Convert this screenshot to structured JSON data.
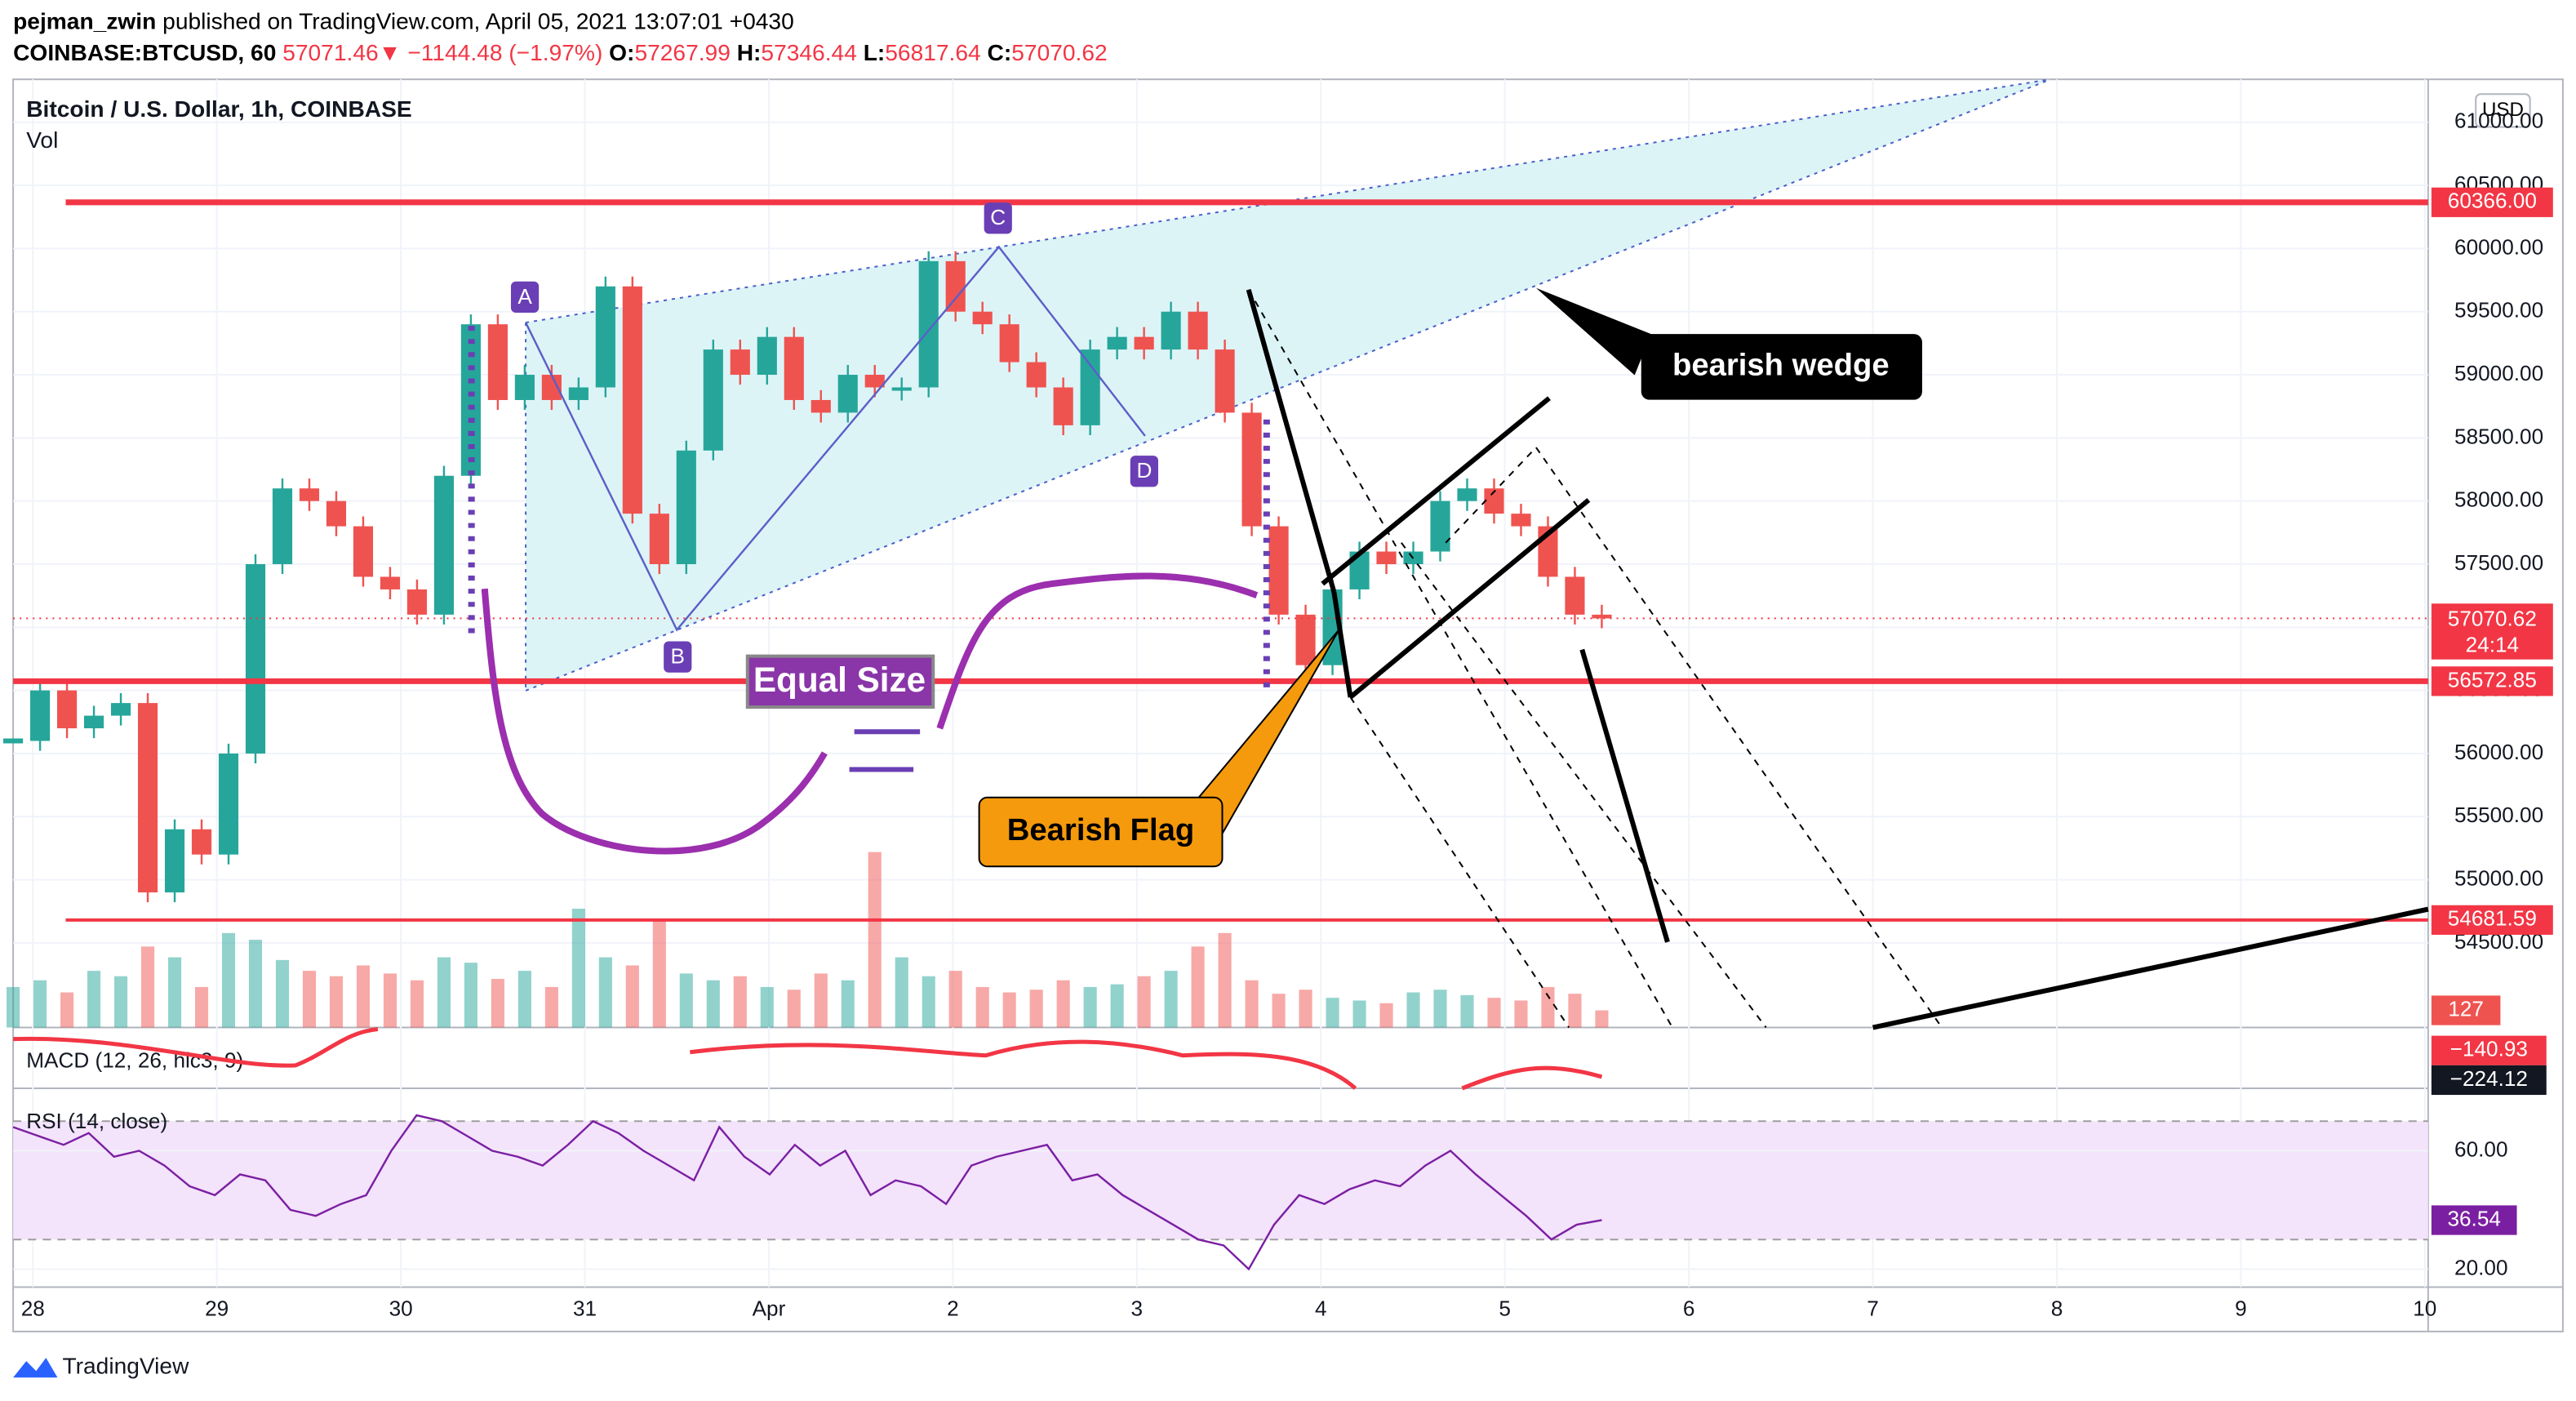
{
  "header": {
    "author": "pejman_zwin",
    "published": "published on TradingView.com, April 05, 2021 13:07:01 +0430",
    "symbol": "COINBASE:BTCUSD, 60",
    "last": "57071.46",
    "arrow": "▼",
    "change": "−1144.48 (−1.97%)",
    "o_key": "O:",
    "o": "57267.99",
    "h_key": "H:",
    "h": "57346.44",
    "l_key": "L:",
    "l": "56817.64",
    "c_key": "C:",
    "c": "57070.62"
  },
  "chart_data": {
    "type": "candlestick",
    "title": "Bitcoin / U.S. Dollar, 1h, COINBASE",
    "volume_title": "Vol",
    "macd_title": "MACD (12, 26, hlc3, 9)",
    "rsi_title": "RSI (14, close)",
    "currency": "USD",
    "x_labels": [
      "28",
      "29",
      "30",
      "31",
      "Apr",
      "2",
      "3",
      "4",
      "5",
      "6",
      "7",
      "8",
      "9",
      "10"
    ],
    "ylim": [
      53830,
      61340
    ],
    "yticks": [
      {
        "value": 54500,
        "label": "54500.00"
      },
      {
        "value": 55000,
        "label": "55000.00"
      },
      {
        "value": 55500,
        "label": "55500.00"
      },
      {
        "value": 56000,
        "label": "56000.00"
      },
      {
        "value": 56500,
        "label": "56500.00"
      },
      {
        "value": 57000,
        "label": "57000.00"
      },
      {
        "value": 57500,
        "label": "57500.00"
      },
      {
        "value": 58000,
        "label": "58000.00"
      },
      {
        "value": 58500,
        "label": "58500.00"
      },
      {
        "value": 59000,
        "label": "59000.00"
      },
      {
        "value": 59500,
        "label": "59500.00"
      },
      {
        "value": 60000,
        "label": "60000.00"
      },
      {
        "value": 60500,
        "label": "60500.00"
      },
      {
        "value": 61000,
        "label": "61000.00"
      }
    ],
    "closes": [
      56100,
      56500,
      56200,
      56300,
      56400,
      54900,
      55400,
      55200,
      56000,
      57500,
      58100,
      58000,
      57800,
      57400,
      57300,
      57100,
      58200,
      59400,
      58800,
      59000,
      58800,
      58900,
      59700,
      57900,
      57500,
      58400,
      59200,
      59000,
      59300,
      58800,
      58700,
      59000,
      58900,
      58900,
      59900,
      59500,
      59400,
      59100,
      58900,
      58600,
      59200,
      59300,
      59200,
      59500,
      59200,
      58700,
      57800,
      57100,
      56700,
      57300,
      57600,
      57500,
      57600,
      58000,
      58100,
      57900,
      57800,
      57400,
      57100,
      57070.62
    ],
    "colors": {
      "up": "#26a69a",
      "down": "#ef5350",
      "rsi": "#7b1fa2",
      "level": "#f23645"
    },
    "levels": [
      {
        "value": 60366,
        "label": "60366.00"
      },
      {
        "value": 56572.85,
        "label": "56572.85"
      },
      {
        "value": 54681.59,
        "label": "54681.59"
      }
    ],
    "last_price": {
      "value": 57070.62,
      "label": "57070.62",
      "countdown": "24:14"
    },
    "volume_ylim": [
      0,
      1400
    ],
    "volume": [
      300,
      350,
      260,
      420,
      380,
      600,
      520,
      300,
      700,
      650,
      500,
      420,
      380,
      460,
      400,
      350,
      520,
      480,
      360,
      420,
      300,
      880,
      520,
      460,
      800,
      400,
      350,
      380,
      300,
      280,
      400,
      350,
      1300,
      520,
      380,
      420,
      300,
      260,
      280,
      350,
      300,
      320,
      380,
      420,
      600,
      700,
      350,
      250,
      280,
      220,
      200,
      180,
      260,
      280,
      240,
      220,
      200,
      300,
      250,
      127
    ],
    "volume_label": "127",
    "macd_labels": [
      "−140.93",
      "−224.12"
    ],
    "rsi_ylim": [
      13.9,
      81.1
    ],
    "rsi_ticks": [
      {
        "value": 60,
        "label": "60.00"
      },
      {
        "value": 20,
        "label": "20.00"
      }
    ],
    "rsi_bands": [
      70,
      30
    ],
    "rsi": [
      68,
      65,
      62,
      66,
      58,
      60,
      55,
      48,
      45,
      52,
      50,
      40,
      38,
      42,
      45,
      60,
      72,
      70,
      65,
      60,
      58,
      55,
      62,
      70,
      66,
      60,
      55,
      50,
      68,
      58,
      52,
      62,
      55,
      60,
      45,
      50,
      48,
      42,
      55,
      58,
      60,
      62,
      50,
      52,
      45,
      40,
      35,
      30,
      28,
      20,
      35,
      45,
      42,
      47,
      50,
      48,
      55,
      60,
      52,
      45,
      38,
      30,
      35,
      36.54
    ],
    "rsi_label": "36.54"
  },
  "annotations": {
    "a": "A",
    "b": "B",
    "c": "C",
    "d": "D",
    "equal": "Equal Size",
    "wedge": "bearish wedge",
    "flag": "Bearish Flag"
  },
  "footer": "TradingView"
}
